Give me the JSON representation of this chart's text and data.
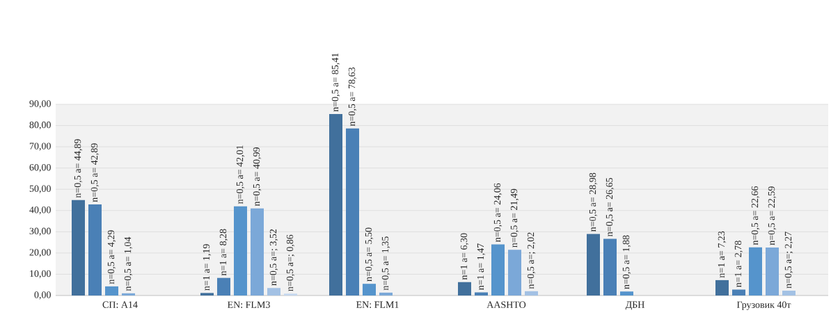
{
  "chart_data": {
    "type": "bar",
    "categories": [
      "СП: А14",
      "EN: FLM3",
      "EN: FLM1",
      "AASHTO",
      "ДБН",
      "Грузовик 40т"
    ],
    "series": [
      {
        "color": "#41709c",
        "values": [
          44.89,
          1.19,
          85.41,
          6.3,
          28.98,
          7.23
        ],
        "value_labels": [
          "n=0,5  a= 44,89",
          "n=1  a= 1,19",
          "n=0,5  a= 85,41",
          "n=1  a= 6,30",
          "n=0,5  a= 28,98",
          "n=1  a= 7,23"
        ]
      },
      {
        "color": "#4a80b6",
        "values": [
          42.89,
          8.28,
          78.63,
          1.47,
          26.65,
          2.78
        ],
        "value_labels": [
          "n=0,5  a= 42,89",
          "n=1  a= 8,28",
          "n=0,5  a= 78,63",
          "n=1  a= 1,47",
          "n=0,5  a= 26,65",
          "n=1  a= 2,78"
        ]
      },
      {
        "color": "#5594cc",
        "values": [
          4.29,
          42.01,
          5.5,
          24.06,
          1.88,
          22.66
        ],
        "value_labels": [
          "n=0,5  a= 4,29",
          "n=0,5  a= 42,01",
          "n=0,5  a= 5,50",
          "n=0,5  a= 24,06",
          "n=0,5  a= 1,88",
          "n=0,5  a= 22,66"
        ]
      },
      {
        "color": "#7ba8d8",
        "values": [
          1.04,
          40.99,
          1.35,
          21.49,
          null,
          22.59
        ],
        "value_labels": [
          "n=0,5  a= 1,04",
          "n=0,5  a= 40,99",
          "n=0,5  a= 1,35",
          "n=0,5  a= 21,49",
          null,
          "n=0,5  a= 22,59"
        ]
      },
      {
        "color": "#a3c1e4",
        "values": [
          null,
          3.52,
          null,
          2.02,
          null,
          2.27
        ],
        "value_labels": [
          null,
          "n=0,5  a=; 3,52",
          null,
          "n=0,5  a=; 2,02",
          null,
          "n=0,5  a=; 2,27"
        ]
      },
      {
        "color": "#c4d7ee",
        "values": [
          null,
          0.86,
          null,
          null,
          null,
          null
        ],
        "value_labels": [
          null,
          "n=0,5  a=; 0,86",
          null,
          null,
          null,
          null
        ]
      }
    ],
    "ylim": [
      0,
      90
    ],
    "yticks": [
      {
        "value": 0,
        "label": "0,00"
      },
      {
        "value": 10,
        "label": "10,00"
      },
      {
        "value": 20,
        "label": "20,00"
      },
      {
        "value": 30,
        "label": "30,00"
      },
      {
        "value": 40,
        "label": "40,00"
      },
      {
        "value": 50,
        "label": "50,00"
      },
      {
        "value": 60,
        "label": "60,00"
      },
      {
        "value": 70,
        "label": "70,00"
      },
      {
        "value": 80,
        "label": "80,00"
      },
      {
        "value": 90,
        "label": "90,00"
      }
    ],
    "grid": "y"
  }
}
